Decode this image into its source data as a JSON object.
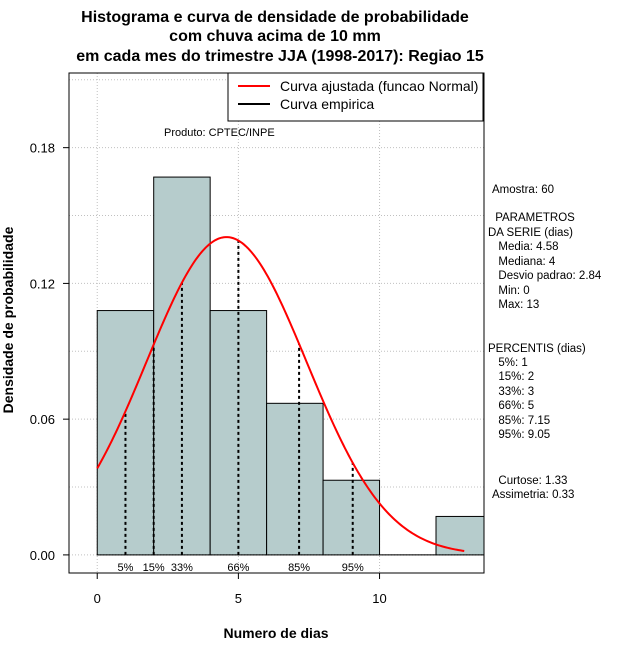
{
  "chart_data": {
    "type": "bar",
    "title": [
      "Histograma e curva de densidade de probabilidade",
      "com chuva acima de 10 mm",
      "em cada mes do trimestre JJA (1998-2017): Regiao 15"
    ],
    "xlabel": "Numero de dias",
    "ylabel": "Densidade de probabilidade",
    "xlim": [
      -1,
      13.7
    ],
    "ylim": [
      -0.008,
      0.213
    ],
    "xticks": [
      0,
      5,
      10
    ],
    "yticks": [
      0.0,
      0.06,
      0.12,
      0.18
    ],
    "ytick_labels": [
      "0.00",
      "0.06",
      "0.12",
      "0.18"
    ],
    "grid": true,
    "bins": [
      {
        "start": 0,
        "end": 2,
        "density": 0.108
      },
      {
        "start": 2,
        "end": 4,
        "density": 0.167
      },
      {
        "start": 4,
        "end": 6,
        "density": 0.108
      },
      {
        "start": 6,
        "end": 8,
        "density": 0.067
      },
      {
        "start": 8,
        "end": 10,
        "density": 0.033
      },
      {
        "start": 10,
        "end": 12,
        "density": 0.0
      },
      {
        "start": 12,
        "end": 14,
        "density": 0.017
      }
    ],
    "fitted_curve": {
      "distribution": "normal",
      "mean": 4.58,
      "sd": 2.84,
      "x_range": [
        0,
        13
      ]
    },
    "percentiles": [
      {
        "label": "5%",
        "value": 1
      },
      {
        "label": "15%",
        "value": 2
      },
      {
        "label": "33%",
        "value": 3
      },
      {
        "label": "66%",
        "value": 5
      },
      {
        "label": "85%",
        "value": 7.15
      },
      {
        "label": "95%",
        "value": 9.05
      }
    ],
    "legend": {
      "position": "top-right",
      "entries": [
        {
          "label": "Curva ajustada (funcao Normal)",
          "color": "#ff0000"
        },
        {
          "label": "Curva empirica",
          "color": "#000000"
        }
      ]
    },
    "annotation": "Produto: CPTEC/INPE",
    "colors": {
      "bar_fill": "#b6cccc",
      "bar_stroke": "#000000",
      "curve": "#ff0000",
      "grid": "#c0c0c0"
    }
  },
  "side_panel": {
    "amostra": "Amostra: 60",
    "params_title_1": " PARAMETROS",
    "params_title_2": "DA SERIE (dias)",
    "params": [
      "  Media: 4.58",
      "  Mediana: 4",
      "  Desvio padrao: 2.84",
      "  Min: 0",
      "  Max: 13"
    ],
    "percentis_title": "PERCENTIS (dias)",
    "percentis": [
      "  5%: 1",
      "  15%: 2",
      "  33%: 3",
      "  66%: 5",
      "  85%: 7.15",
      "  95%: 9.05"
    ],
    "curtose": "  Curtose: 1.33",
    "assimetria": "Assimetria: 0.33"
  }
}
